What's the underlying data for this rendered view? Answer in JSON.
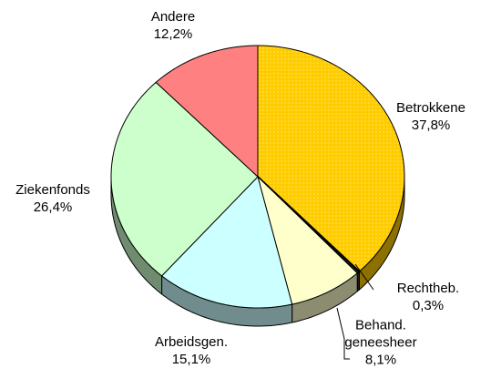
{
  "chart_data": {
    "type": "pie",
    "categories": [
      "Betrokkene",
      "Rechtheb.",
      "Behand.\ngeneesheer",
      "Arbeidsgen.",
      "Ziekenfonds",
      "Andere"
    ],
    "values": [
      37.8,
      0.3,
      8.1,
      15.1,
      26.4,
      12.2
    ],
    "value_labels": [
      "37,8%",
      "0,3%",
      "8,1%",
      "15,1%",
      "26,4%",
      "12,2%"
    ],
    "colors": [
      "#ffcc00",
      "#333333",
      "#ffffcc",
      "#ccffff",
      "#ccffcc",
      "#ff8080"
    ]
  }
}
